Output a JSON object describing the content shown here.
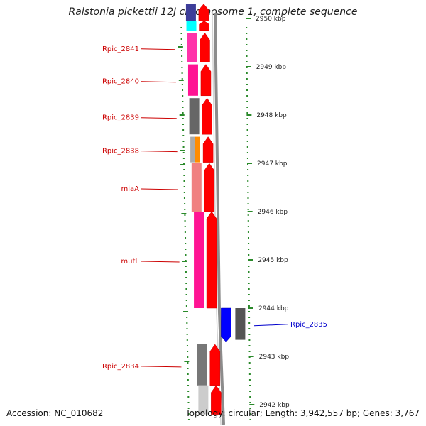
{
  "title": "Ralstonia pickettii 12J chromosome 1, complete sequence",
  "footer": {
    "accession": "Accession: NC_010682",
    "summary": "Topology: circular; Length: 3,942,557 bp; Genes: 3,767"
  },
  "colors": {
    "plus_label": "#cc0000",
    "minus_label": "#0000cc",
    "kbp_tick": "#2a8a2a",
    "backbone": "#8c8c8c"
  },
  "kbp_labels": [
    {
      "text": "2950 kbp",
      "kb": 2950
    },
    {
      "text": "2949 kbp",
      "kb": 2949
    },
    {
      "text": "2948 kbp",
      "kb": 2948
    },
    {
      "text": "2947 kbp",
      "kb": 2947
    },
    {
      "text": "2946 kbp",
      "kb": 2946
    },
    {
      "text": "2945 kbp",
      "kb": 2945
    },
    {
      "text": "2944 kbp",
      "kb": 2944
    },
    {
      "text": "2943 kbp",
      "kb": 2943
    },
    {
      "text": "2942 kbp",
      "kb": 2942
    }
  ],
  "plus_genes": [
    {
      "label": "",
      "start_kb": 2950.3,
      "end_kb": 2949.95,
      "category_color": "#3d3d99"
    },
    {
      "label": "",
      "start_kb": 2949.95,
      "end_kb": 2949.75,
      "category_color": "#00ffff"
    },
    {
      "label": "Rpic_2841",
      "start_kb": 2949.7,
      "end_kb": 2949.1,
      "category_color": "#ff33aa"
    },
    {
      "label": "Rpic_2840",
      "start_kb": 2949.05,
      "end_kb": 2948.4,
      "category_color": "#ff1493"
    },
    {
      "label": "Rpic_2839",
      "start_kb": 2948.35,
      "end_kb": 2947.6,
      "category_color": "#666666"
    },
    {
      "label": "Rpic_2838",
      "start_kb": 2947.55,
      "end_kb": 2947.02,
      "category_color": "#aaaaaa",
      "category_color2": "#ff8c00"
    },
    {
      "label": "miaA",
      "start_kb": 2947.0,
      "end_kb": 2946.0,
      "category_color": "#f08080"
    },
    {
      "label": "mutL",
      "start_kb": 2946.0,
      "end_kb": 2944.0,
      "category_color": "#ff1493"
    },
    {
      "label": "Rpic_2834",
      "start_kb": 2943.25,
      "end_kb": 2942.4,
      "category_color": "#777777"
    },
    {
      "label": "",
      "start_kb": 2942.4,
      "end_kb": 2941.8,
      "category_color": "#cccccc"
    }
  ],
  "minus_genes": [
    {
      "label": "Rpic_2835",
      "start_kb": 2944.0,
      "end_kb": 2943.3,
      "category_color": "#555555",
      "strand_color": "#0000ff"
    }
  ]
}
